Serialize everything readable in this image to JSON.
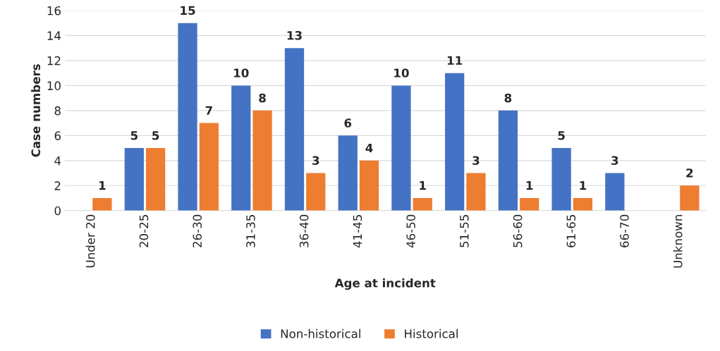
{
  "chart_data": {
    "type": "bar",
    "xlabel": "Age at incident",
    "ylabel": "Case numbers",
    "categories": [
      "Under 20",
      "20-25",
      "26-30",
      "31-35",
      "36-40",
      "41-45",
      "46-50",
      "51-55",
      "56-60",
      "61-65",
      "66-70",
      "Unknown"
    ],
    "series": [
      {
        "name": "Non-historical",
        "color": "#4472c4",
        "values": [
          null,
          5,
          15,
          10,
          13,
          6,
          10,
          11,
          8,
          5,
          3,
          null
        ]
      },
      {
        "name": "Historical",
        "color": "#ed7d31",
        "values": [
          1,
          5,
          7,
          8,
          3,
          4,
          1,
          3,
          1,
          1,
          null,
          2
        ]
      }
    ],
    "ylim": [
      0,
      16
    ],
    "yticks": [
      0,
      2,
      4,
      6,
      8,
      10,
      12,
      14,
      16
    ],
    "grid": "y",
    "legend": "bottom",
    "data_labels": true
  }
}
